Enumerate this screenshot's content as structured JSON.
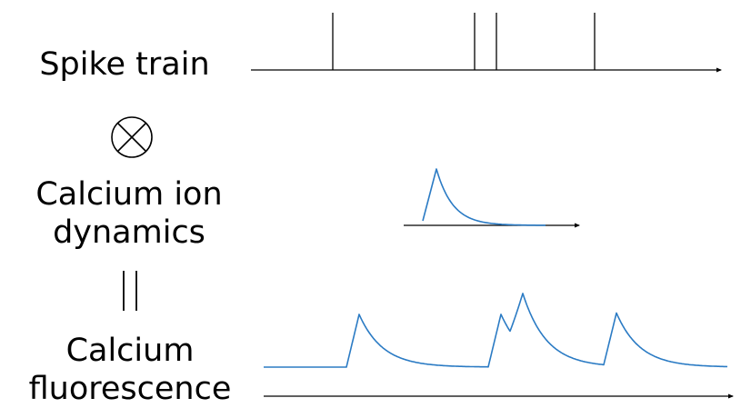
{
  "labels": {
    "spike_train": "Spike train",
    "calcium_ion_line1": "Calcium ion",
    "calcium_ion_line2": "dynamics",
    "fluorescence_line1": "Calcium",
    "fluorescence_line2": "fluorescence"
  },
  "operators": {
    "convolution": "circled-times-icon",
    "equals": "vertical-equals-icon"
  },
  "colors": {
    "trace": "#2b7bc4",
    "axis": "#000000"
  }
}
